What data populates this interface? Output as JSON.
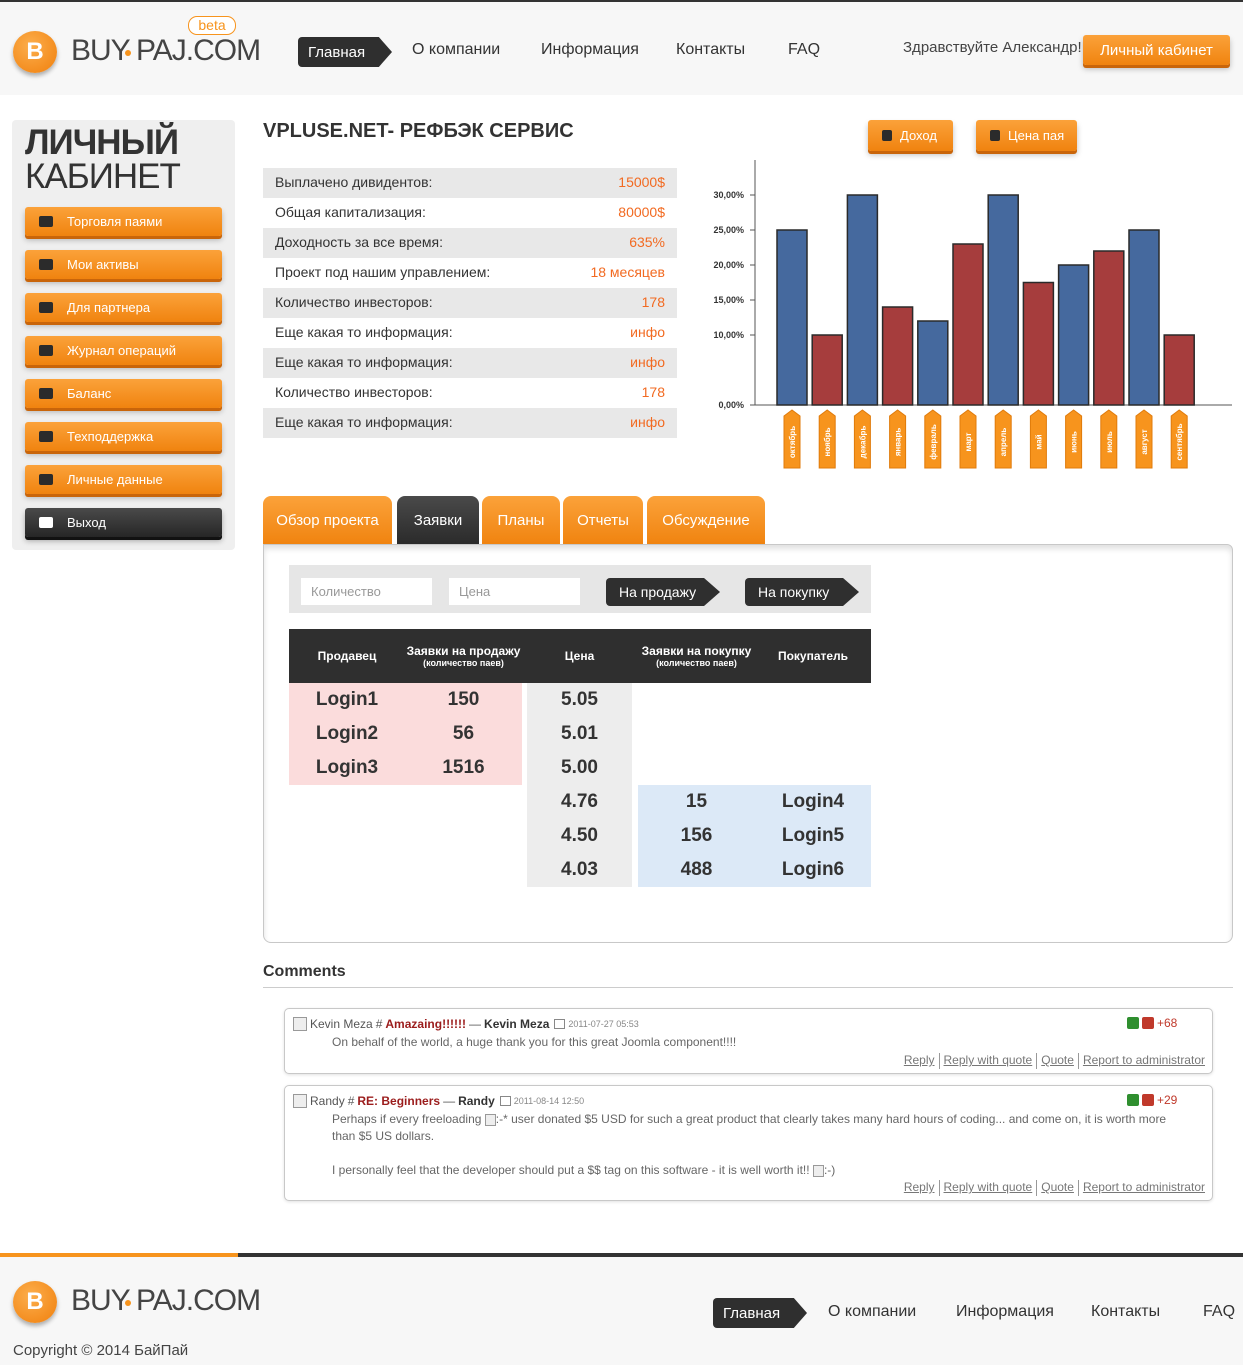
{
  "header": {
    "logo": {
      "letter": "B",
      "part1": "BUY",
      "part2": "PAJ.COM",
      "badge": "beta"
    },
    "nav": [
      "Главная",
      "О компании",
      "Информация",
      "Контакты",
      "FAQ"
    ],
    "greeting": "Здравствуйте Александр!",
    "cabinet_button": "Личный кабинет"
  },
  "sidebar": {
    "title": [
      "ЛИЧНЫЙ",
      "КАБИНЕТ"
    ],
    "menu": [
      "Торговля паями",
      "Мои активы",
      "Для партнера",
      "Журнал операций",
      "Баланс",
      "Техподдержка",
      "Личные данные",
      "Выход"
    ]
  },
  "info": {
    "title": "VPLUSE.NET- РЕФБЭК СЕРВИС",
    "rows": [
      [
        "Выплачено дивидентов:",
        "15000$"
      ],
      [
        "Общая капитализация:",
        "80000$"
      ],
      [
        "Доходность за все время:",
        "635%"
      ],
      [
        "Проект под нашим управлением:",
        "18 месяцев"
      ],
      [
        "Количество инвесторов:",
        "178"
      ],
      [
        "Еще какая то информация:",
        "инфо"
      ],
      [
        "Еще какая то информация:",
        "инфо"
      ],
      [
        "Количество инвесторов:",
        "178"
      ],
      [
        "Еще какая то информация:",
        "инфо"
      ]
    ]
  },
  "chart_buttons": [
    "Доход",
    "Цена пая"
  ],
  "chart_data": {
    "type": "bar",
    "categories": [
      "октябрь",
      "ноябрь",
      "декабрь",
      "январь",
      "февраль",
      "март",
      "апрель",
      "май",
      "июнь",
      "июль",
      "август",
      "сентябрь"
    ],
    "values": [
      25,
      10,
      30,
      14,
      12,
      23,
      30,
      17.5,
      20,
      22,
      25,
      10
    ],
    "colors": [
      "#45699e",
      "#a63d3d",
      "#45699e",
      "#a63d3d",
      "#45699e",
      "#a63d3d",
      "#45699e",
      "#a63d3d",
      "#45699e",
      "#a63d3d",
      "#45699e",
      "#a63d3d"
    ],
    "ylim": [
      0,
      35
    ],
    "yticks": [
      {
        "value": 30,
        "label": "30,00%"
      },
      {
        "value": 25,
        "label": "25,00%"
      },
      {
        "value": 20,
        "label": "20,00%"
      },
      {
        "value": 15,
        "label": "15,00%"
      },
      {
        "value": 10,
        "label": "10,00%"
      },
      {
        "value": 0,
        "label": "0,00%"
      }
    ]
  },
  "tabs": [
    "Обзор проекта",
    "Заявки",
    "Планы",
    "Отчеты",
    "Обсуждение"
  ],
  "order_form": {
    "placeholders": [
      "Количество",
      "Цена"
    ],
    "buttons": [
      "На продажу",
      "На покупку"
    ]
  },
  "table": {
    "columns": [
      {
        "title": "Продавец"
      },
      {
        "title": "Заявки на продажу",
        "sub": "(количество паев)"
      },
      {
        "title": "Цена"
      },
      {
        "title": "Заявки на покупку",
        "sub": "(количество паев)"
      },
      {
        "title": "Покупатель"
      }
    ],
    "sell_rows": [
      [
        "Login1",
        "150",
        "5.05"
      ],
      [
        "Login2",
        "56",
        "5.01"
      ],
      [
        "Login3",
        "1516",
        "5.00"
      ]
    ],
    "buy_rows": [
      [
        "4.76",
        "15",
        "Login4"
      ],
      [
        "4.50",
        "156",
        "Login5"
      ],
      [
        "4.03",
        "488",
        "Login6"
      ]
    ]
  },
  "comments_title": "Comments",
  "comment_actions": [
    "Reply",
    "Reply with quote",
    "Quote",
    "Report to administrator"
  ],
  "comments": [
    {
      "avatar_alt": "Kevin Meza",
      "anchor": "#",
      "title": "Amazaing!!!!!!",
      "dash": "—",
      "author": "Kevin Meza",
      "date": "2011-07-27 05:53",
      "votes": "+68",
      "body": [
        [
          {
            "text": "On behalf of the world, a huge thank you for this great Joomla component!!!!"
          }
        ]
      ]
    },
    {
      "avatar_alt": "Randy",
      "anchor": "#",
      "title": "RE: Beginners",
      "dash": "—",
      "author": "Randy",
      "date": "2011-08-14 12:50",
      "votes": "+29",
      "body": [
        [
          {
            "text": "Perhaps if every freeloading "
          },
          {
            "emoticon": ":-*"
          },
          {
            "text": " user donated $5 USD for such a great product that clearly takes many hard hours of coding... and come on, it is worth more than $5 US dollars."
          }
        ],
        [
          {
            "text": "I personally feel that the developer should put a $$ tag on this software - it is well worth it!! "
          },
          {
            "emoticon": ":-)"
          }
        ]
      ]
    }
  ],
  "footer": {
    "logo": {
      "letter": "B",
      "part1": "BUY",
      "part2": "PAJ.COM"
    },
    "nav": [
      "Главная",
      "О компании",
      "Информация",
      "Контакты",
      "FAQ"
    ],
    "copyright": "Copyright © 2014 БайПай"
  }
}
